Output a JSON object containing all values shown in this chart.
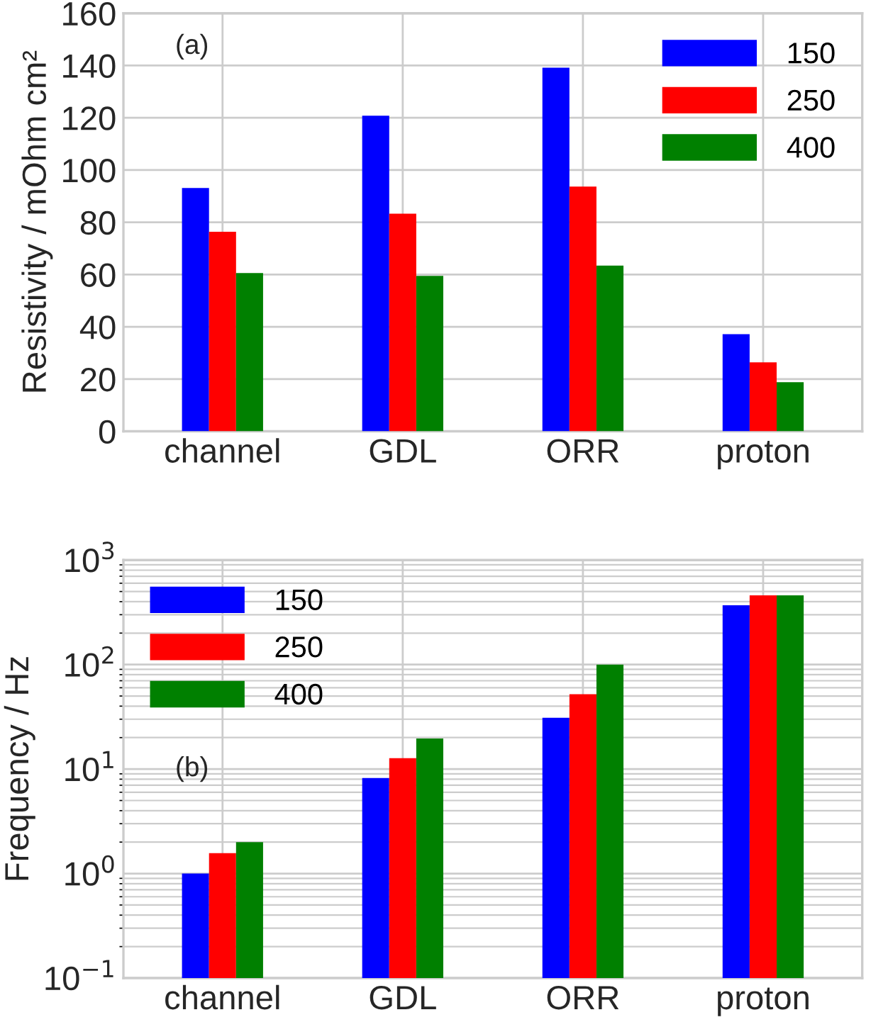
{
  "chart_data": [
    {
      "type": "bar",
      "categories": [
        "channel",
        "GDL",
        "ORR",
        "proton"
      ],
      "ylabel": "Resistivity / mOhm cm²",
      "annotations": [
        "(a)"
      ],
      "ylim": [
        0,
        160
      ],
      "yticks": [
        0,
        20,
        40,
        60,
        80,
        100,
        120,
        140,
        160
      ],
      "grid": true,
      "legend": "top right",
      "series": [
        {
          "name": "150",
          "color": "#0000ff",
          "values": [
            93.1,
            120.8,
            139.2,
            37.2
          ]
        },
        {
          "name": "250",
          "color": "#ff0000",
          "values": [
            76.4,
            83.3,
            93.7,
            26.4
          ]
        },
        {
          "name": "400",
          "color": "#008000",
          "values": [
            60.6,
            59.5,
            63.4,
            18.8
          ]
        }
      ]
    },
    {
      "type": "bar",
      "categories": [
        "channel",
        "GDL",
        "ORR",
        "proton"
      ],
      "ylabel": "Frequency / Hz",
      "annotations": [
        "(b)"
      ],
      "log": "y",
      "ylim": [
        0.1,
        1000
      ],
      "yticks": [
        {
          "value": 0.1,
          "label": "10$^{−1}$"
        },
        {
          "value": 1,
          "label": "10$^{0}$"
        },
        {
          "value": 10,
          "label": "10$^{1}$"
        },
        {
          "value": 100,
          "label": "10$^{2}$"
        },
        {
          "value": 1000,
          "label": "10$^{3}$"
        }
      ],
      "grid": true,
      "legend": "top left",
      "series": [
        {
          "name": "150",
          "color": "#0000ff",
          "values": [
            1.0,
            8.2,
            31,
            370
          ]
        },
        {
          "name": "250",
          "color": "#ff0000",
          "values": [
            1.57,
            12.7,
            52,
            460
          ]
        },
        {
          "name": "400",
          "color": "#008000",
          "values": [
            2.0,
            19.6,
            100,
            460
          ]
        }
      ]
    }
  ]
}
